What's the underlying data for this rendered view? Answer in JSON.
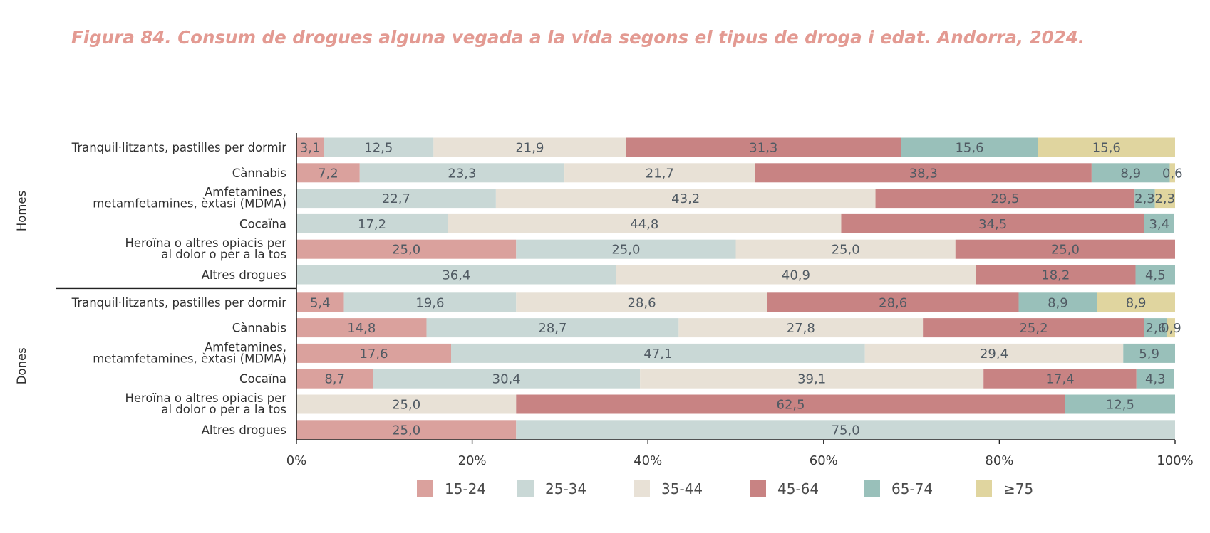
{
  "chart_data": {
    "type": "bar",
    "orientation": "horizontal",
    "stacked": true,
    "title": "Figura 84. Consum de drogues alguna vegada a la vida segons el tipus de droga i edat. Andorra, 2024.",
    "xlim": [
      0,
      100
    ],
    "xticks": [
      "0%",
      "20%",
      "40%",
      "60%",
      "80%",
      "100%"
    ],
    "grid": false,
    "legend_position": "bottom",
    "series": [
      {
        "name": "15-24",
        "color": "#daa19d"
      },
      {
        "name": "25-34",
        "color": "#c9d8d6"
      },
      {
        "name": "35-44",
        "color": "#e8e1d6"
      },
      {
        "name": "45-64",
        "color": "#c88383"
      },
      {
        "name": "65-74",
        "color": "#99c0ba"
      },
      {
        "name": "≥75",
        "color": "#e0d59f"
      }
    ],
    "groups": [
      {
        "name": "Homes",
        "rows": [
          {
            "label": [
              "Tranquil·litzants, pastilles per dormir"
            ],
            "values": [
              3.1,
              12.5,
              21.9,
              31.3,
              15.6,
              15.6
            ],
            "labels": [
              "3,1",
              "12,5",
              "21,9",
              "31,3",
              "15,6",
              "15,6"
            ]
          },
          {
            "label": [
              "Cànnabis"
            ],
            "values": [
              7.2,
              23.3,
              21.7,
              38.3,
              8.9,
              0.6
            ],
            "labels": [
              "7,2",
              "23,3",
              "21,7",
              "38,3",
              "8,9",
              "0,6"
            ]
          },
          {
            "label": [
              "Amfetamines,",
              "metamfetamines, èxtasi (MDMA)"
            ],
            "values": [
              0,
              22.7,
              43.2,
              29.5,
              2.3,
              2.3
            ],
            "labels": [
              "",
              "22,7",
              "43,2",
              "29,5",
              "2,3",
              "2,3"
            ]
          },
          {
            "label": [
              "Cocaïna"
            ],
            "values": [
              0,
              17.2,
              44.8,
              34.5,
              3.4,
              0
            ],
            "labels": [
              "",
              "17,2",
              "44,8",
              "34,5",
              "3,4",
              ""
            ]
          },
          {
            "label": [
              "Heroïna o altres opiacis per",
              "al dolor o per a la tos"
            ],
            "values": [
              25.0,
              25.0,
              25.0,
              25.0,
              0,
              0
            ],
            "labels": [
              "25,0",
              "25,0",
              "25,0",
              "25,0",
              "",
              ""
            ]
          },
          {
            "label": [
              "Altres drogues"
            ],
            "values": [
              0,
              36.4,
              40.9,
              18.2,
              4.5,
              0
            ],
            "labels": [
              "",
              "36,4",
              "40,9",
              "18,2",
              "4,5",
              ""
            ]
          }
        ]
      },
      {
        "name": "Dones",
        "rows": [
          {
            "label": [
              "Tranquil·litzants, pastilles per dormir"
            ],
            "values": [
              5.4,
              19.6,
              28.6,
              28.6,
              8.9,
              8.9
            ],
            "labels": [
              "5,4",
              "19,6",
              "28,6",
              "28,6",
              "8,9",
              "8,9"
            ]
          },
          {
            "label": [
              "Cànnabis"
            ],
            "values": [
              14.8,
              28.7,
              27.8,
              25.2,
              2.6,
              0.9
            ],
            "labels": [
              "14,8",
              "28,7",
              "27,8",
              "25,2",
              "2,6",
              "0,9"
            ]
          },
          {
            "label": [
              "Amfetamines,",
              "metamfetamines, èxtasi (MDMA)"
            ],
            "values": [
              17.6,
              47.1,
              29.4,
              0,
              5.9,
              0
            ],
            "labels": [
              "17,6",
              "47,1",
              "29,4",
              "",
              "5,9",
              ""
            ]
          },
          {
            "label": [
              "Cocaïna"
            ],
            "values": [
              8.7,
              30.4,
              39.1,
              17.4,
              4.3,
              0
            ],
            "labels": [
              "8,7",
              "30,4",
              "39,1",
              "17,4",
              "4,3",
              ""
            ]
          },
          {
            "label": [
              "Heroïna o altres opiacis per",
              "al dolor o per a la tos"
            ],
            "values": [
              0,
              0,
              25.0,
              62.5,
              12.5,
              0
            ],
            "labels": [
              "",
              "",
              "25,0",
              "62,5",
              "12,5",
              ""
            ]
          },
          {
            "label": [
              "Altres drogues"
            ],
            "values": [
              25.0,
              75.0,
              0,
              0,
              0,
              0
            ],
            "labels": [
              "25,0",
              "75,0",
              "",
              "",
              "",
              ""
            ]
          }
        ]
      }
    ]
  }
}
